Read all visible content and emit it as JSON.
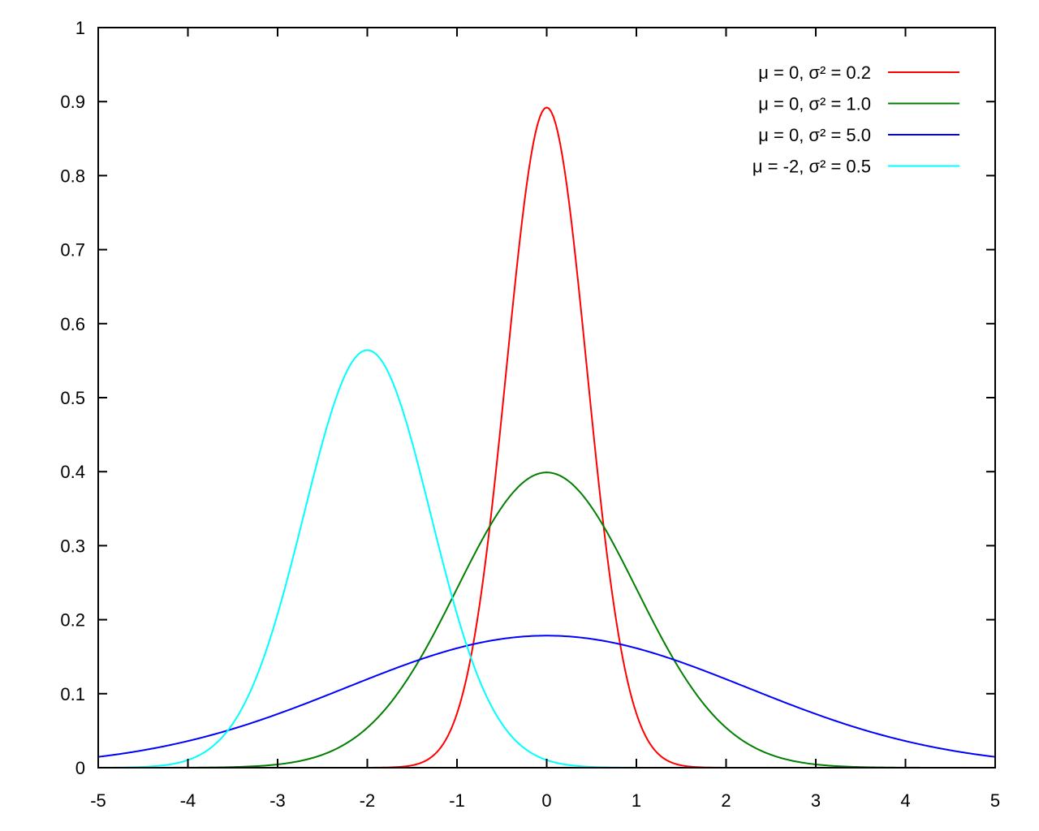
{
  "chart_data": {
    "type": "line",
    "title": "",
    "xlabel": "",
    "ylabel": "",
    "xlim": [
      -5,
      5
    ],
    "ylim": [
      0,
      1
    ],
    "x_ticks": [
      "-5",
      "-4",
      "-3",
      "-2",
      "-1",
      "0",
      "1",
      "2",
      "3",
      "4",
      "5"
    ],
    "y_ticks": [
      "0",
      "0.1",
      "0.2",
      "0.3",
      "0.4",
      "0.5",
      "0.6",
      "0.7",
      "0.8",
      "0.9",
      "1"
    ],
    "grid": false,
    "legend_position": "top-right",
    "series": [
      {
        "name": "μ = 0, σ² = 0.2",
        "color": "#ff0000",
        "mu": 0,
        "variance": 0.2,
        "peak": 0.886
      },
      {
        "name": "μ = 0, σ² = 1.0",
        "color": "#007f00",
        "mu": 0,
        "variance": 1.0,
        "peak": 0.399
      },
      {
        "name": "μ = 0, σ² = 5.0",
        "color": "#0000ff",
        "mu": 0,
        "variance": 5.0,
        "peak": 0.178
      },
      {
        "name": "μ = -2, σ² = 0.5",
        "color": "#00ffff",
        "mu": -2,
        "variance": 0.5,
        "peak": 0.564
      }
    ]
  }
}
